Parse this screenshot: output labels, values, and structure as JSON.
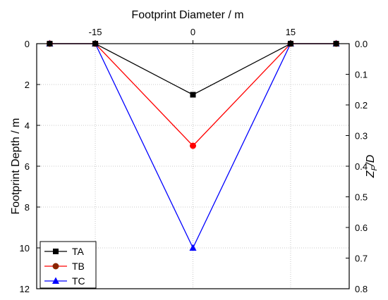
{
  "chart_data": {
    "type": "line",
    "title": "",
    "xlabel": "Footprint Diameter / m",
    "ylabel": "Footprint Depth / m",
    "y2label_main": "Z",
    "y2label_sub": "F",
    "y2label_rest": "/D",
    "x": [
      -22,
      -15,
      0,
      15,
      22
    ],
    "xlim": [
      -24,
      24
    ],
    "ylim": [
      12,
      0
    ],
    "y2lim": [
      0.8,
      0.0
    ],
    "x_ticks": [
      "-15",
      "0",
      "15"
    ],
    "x_tick_values": [
      -15,
      0,
      15
    ],
    "y_ticks": [
      "0",
      "2",
      "4",
      "6",
      "8",
      "10",
      "12"
    ],
    "y_tick_values": [
      0,
      2,
      4,
      6,
      8,
      10,
      12
    ],
    "y2_ticks": [
      "0.0",
      "0.1",
      "0.2",
      "0.3",
      "0.4",
      "0.5",
      "0.6",
      "0.7",
      "0.8"
    ],
    "y2_tick_values": [
      0,
      0.1,
      0.2,
      0.3,
      0.4,
      0.5,
      0.6,
      0.7,
      0.8
    ],
    "grid": true,
    "legend_position": "bottom-left",
    "series": [
      {
        "name": "TA",
        "color": "#000000",
        "marker": "square",
        "values": [
          0,
          0,
          2.5,
          0,
          0
        ]
      },
      {
        "name": "TB",
        "color": "#ff0000",
        "marker": "circle",
        "values": [
          0,
          0,
          5,
          0,
          0
        ]
      },
      {
        "name": "TC",
        "color": "#0000ff",
        "marker": "triangle",
        "values": [
          0,
          0,
          10,
          0,
          0
        ]
      }
    ]
  }
}
